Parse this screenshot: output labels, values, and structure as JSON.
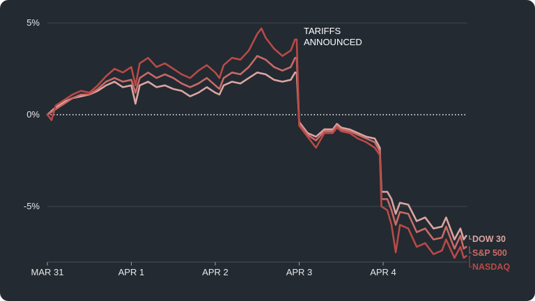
{
  "chart_data": {
    "type": "line",
    "title": "",
    "xlabel": "",
    "ylabel": "",
    "ylim": [
      -8,
      5.8
    ],
    "xlim": [
      0,
      4.99
    ],
    "y_ticks": [
      {
        "value": 5,
        "label": "5%"
      },
      {
        "value": 0,
        "label": "0%"
      },
      {
        "value": -5,
        "label": "-5%"
      }
    ],
    "x_ticks": [
      {
        "value": 0,
        "label": "MAR 31"
      },
      {
        "value": 1,
        "label": "APR 1"
      },
      {
        "value": 2,
        "label": "APR 2"
      },
      {
        "value": 3,
        "label": "APR 3"
      },
      {
        "value": 4,
        "label": "APR 4"
      }
    ],
    "zero_line": {
      "value": 0,
      "style": "dotted"
    },
    "annotation": {
      "x": 2.95,
      "y": 4.2,
      "lines": [
        "TARIFFS",
        "ANNOUNCED"
      ]
    },
    "series": [
      {
        "name": "DOW 30",
        "color": "#dba5a2",
        "points": [
          [
            0.0,
            0.0
          ],
          [
            0.1,
            0.4
          ],
          [
            0.2,
            0.7
          ],
          [
            0.3,
            0.9
          ],
          [
            0.4,
            1.0
          ],
          [
            0.5,
            1.1
          ],
          [
            0.6,
            1.3
          ],
          [
            0.7,
            1.6
          ],
          [
            0.8,
            1.8
          ],
          [
            0.9,
            1.5
          ],
          [
            1.0,
            1.6
          ],
          [
            1.05,
            0.6
          ],
          [
            1.1,
            1.6
          ],
          [
            1.2,
            1.8
          ],
          [
            1.3,
            1.5
          ],
          [
            1.4,
            1.6
          ],
          [
            1.5,
            1.4
          ],
          [
            1.6,
            1.3
          ],
          [
            1.7,
            1.0
          ],
          [
            1.8,
            1.2
          ],
          [
            1.9,
            1.5
          ],
          [
            2.0,
            1.2
          ],
          [
            2.05,
            1.1
          ],
          [
            2.1,
            1.6
          ],
          [
            2.2,
            1.8
          ],
          [
            2.3,
            1.7
          ],
          [
            2.4,
            2.0
          ],
          [
            2.5,
            2.3
          ],
          [
            2.6,
            2.2
          ],
          [
            2.7,
            1.9
          ],
          [
            2.8,
            1.8
          ],
          [
            2.9,
            1.9
          ],
          [
            2.95,
            2.3
          ],
          [
            2.97,
            2.3
          ],
          [
            3.0,
            -0.4
          ],
          [
            3.1,
            -1.0
          ],
          [
            3.2,
            -1.2
          ],
          [
            3.3,
            -0.8
          ],
          [
            3.4,
            -0.8
          ],
          [
            3.45,
            -0.5
          ],
          [
            3.5,
            -0.7
          ],
          [
            3.6,
            -0.8
          ],
          [
            3.7,
            -1.0
          ],
          [
            3.8,
            -1.2
          ],
          [
            3.9,
            -1.3
          ],
          [
            3.96,
            -1.8
          ],
          [
            3.98,
            -4.2
          ],
          [
            4.05,
            -4.2
          ],
          [
            4.1,
            -4.6
          ],
          [
            4.15,
            -5.4
          ],
          [
            4.2,
            -4.8
          ],
          [
            4.3,
            -4.9
          ],
          [
            4.4,
            -5.8
          ],
          [
            4.5,
            -5.6
          ],
          [
            4.6,
            -6.2
          ],
          [
            4.7,
            -6.1
          ],
          [
            4.75,
            -5.6
          ],
          [
            4.85,
            -6.8
          ],
          [
            4.92,
            -6.2
          ],
          [
            4.96,
            -6.8
          ],
          [
            4.99,
            -6.6
          ]
        ]
      },
      {
        "name": "S&P 500",
        "color": "#c96a67",
        "points": [
          [
            0.0,
            0.0
          ],
          [
            0.1,
            0.3
          ],
          [
            0.2,
            0.6
          ],
          [
            0.3,
            0.9
          ],
          [
            0.4,
            1.1
          ],
          [
            0.5,
            1.1
          ],
          [
            0.6,
            1.4
          ],
          [
            0.7,
            1.8
          ],
          [
            0.8,
            2.0
          ],
          [
            0.9,
            1.8
          ],
          [
            1.0,
            1.9
          ],
          [
            1.05,
            1.2
          ],
          [
            1.1,
            2.0
          ],
          [
            1.2,
            2.3
          ],
          [
            1.3,
            2.0
          ],
          [
            1.4,
            2.2
          ],
          [
            1.5,
            2.0
          ],
          [
            1.6,
            1.7
          ],
          [
            1.7,
            1.5
          ],
          [
            1.8,
            1.7
          ],
          [
            1.9,
            2.0
          ],
          [
            2.0,
            1.6
          ],
          [
            2.05,
            1.4
          ],
          [
            2.1,
            2.0
          ],
          [
            2.2,
            2.3
          ],
          [
            2.3,
            2.2
          ],
          [
            2.4,
            2.6
          ],
          [
            2.5,
            3.2
          ],
          [
            2.6,
            3.0
          ],
          [
            2.7,
            2.6
          ],
          [
            2.8,
            2.4
          ],
          [
            2.9,
            2.6
          ],
          [
            2.95,
            3.1
          ],
          [
            2.97,
            3.1
          ],
          [
            3.0,
            -0.5
          ],
          [
            3.1,
            -1.1
          ],
          [
            3.2,
            -1.4
          ],
          [
            3.3,
            -0.9
          ],
          [
            3.4,
            -0.9
          ],
          [
            3.45,
            -0.6
          ],
          [
            3.5,
            -0.8
          ],
          [
            3.6,
            -0.9
          ],
          [
            3.7,
            -1.1
          ],
          [
            3.8,
            -1.3
          ],
          [
            3.9,
            -1.5
          ],
          [
            3.96,
            -2.0
          ],
          [
            3.98,
            -4.6
          ],
          [
            4.05,
            -4.6
          ],
          [
            4.1,
            -5.2
          ],
          [
            4.15,
            -6.0
          ],
          [
            4.2,
            -5.3
          ],
          [
            4.3,
            -5.4
          ],
          [
            4.4,
            -6.4
          ],
          [
            4.5,
            -6.2
          ],
          [
            4.6,
            -6.8
          ],
          [
            4.7,
            -6.7
          ],
          [
            4.75,
            -6.1
          ],
          [
            4.85,
            -7.3
          ],
          [
            4.92,
            -6.6
          ],
          [
            4.96,
            -7.3
          ],
          [
            4.99,
            -7.2
          ]
        ]
      },
      {
        "name": "NASDAQ",
        "color": "#b84a47",
        "points": [
          [
            0.0,
            0.0
          ],
          [
            0.05,
            -0.3
          ],
          [
            0.1,
            0.5
          ],
          [
            0.2,
            0.8
          ],
          [
            0.3,
            1.1
          ],
          [
            0.4,
            1.3
          ],
          [
            0.5,
            1.2
          ],
          [
            0.6,
            1.6
          ],
          [
            0.7,
            2.1
          ],
          [
            0.8,
            2.5
          ],
          [
            0.9,
            2.3
          ],
          [
            1.0,
            2.6
          ],
          [
            1.05,
            1.6
          ],
          [
            1.1,
            2.8
          ],
          [
            1.2,
            3.1
          ],
          [
            1.3,
            2.6
          ],
          [
            1.4,
            2.8
          ],
          [
            1.5,
            2.5
          ],
          [
            1.6,
            2.2
          ],
          [
            1.7,
            2.0
          ],
          [
            1.8,
            2.4
          ],
          [
            1.9,
            2.7
          ],
          [
            2.0,
            2.3
          ],
          [
            2.05,
            2.0
          ],
          [
            2.1,
            2.7
          ],
          [
            2.2,
            3.1
          ],
          [
            2.3,
            3.0
          ],
          [
            2.4,
            3.5
          ],
          [
            2.5,
            4.4
          ],
          [
            2.55,
            4.7
          ],
          [
            2.6,
            4.2
          ],
          [
            2.7,
            3.6
          ],
          [
            2.8,
            3.2
          ],
          [
            2.9,
            3.5
          ],
          [
            2.95,
            4.1
          ],
          [
            2.97,
            4.1
          ],
          [
            3.0,
            -0.6
          ],
          [
            3.1,
            -1.2
          ],
          [
            3.2,
            -1.8
          ],
          [
            3.3,
            -1.0
          ],
          [
            3.4,
            -1.0
          ],
          [
            3.45,
            -0.7
          ],
          [
            3.5,
            -0.9
          ],
          [
            3.6,
            -1.0
          ],
          [
            3.7,
            -1.3
          ],
          [
            3.8,
            -1.5
          ],
          [
            3.9,
            -1.8
          ],
          [
            3.96,
            -2.2
          ],
          [
            3.98,
            -5.0
          ],
          [
            4.05,
            -5.2
          ],
          [
            4.1,
            -6.0
          ],
          [
            4.15,
            -7.5
          ],
          [
            4.2,
            -6.0
          ],
          [
            4.3,
            -6.2
          ],
          [
            4.4,
            -7.2
          ],
          [
            4.5,
            -7.0
          ],
          [
            4.6,
            -7.6
          ],
          [
            4.7,
            -7.4
          ],
          [
            4.75,
            -6.8
          ],
          [
            4.85,
            -7.8
          ],
          [
            4.92,
            -7.2
          ],
          [
            4.96,
            -7.8
          ],
          [
            4.99,
            -7.7
          ]
        ]
      }
    ]
  }
}
